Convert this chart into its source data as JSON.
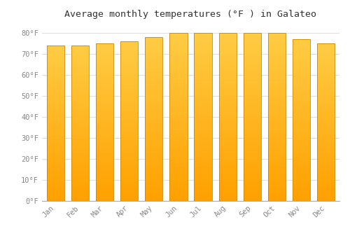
{
  "title": "Average monthly temperatures (°F ) in Galateo",
  "months": [
    "Jan",
    "Feb",
    "Mar",
    "Apr",
    "May",
    "Jun",
    "Jul",
    "Aug",
    "Sep",
    "Oct",
    "Nov",
    "Dec"
  ],
  "values": [
    74,
    74,
    75,
    76,
    78,
    80,
    80,
    80,
    80,
    80,
    77,
    75
  ],
  "bar_color_top": "#FFCC44",
  "bar_color_bottom": "#FFA000",
  "ylim": [
    0,
    84
  ],
  "yticks": [
    0,
    10,
    20,
    30,
    40,
    50,
    60,
    70,
    80
  ],
  "ytick_labels": [
    "0°F",
    "10°F",
    "20°F",
    "30°F",
    "40°F",
    "50°F",
    "60°F",
    "70°F",
    "80°F"
  ],
  "bg_color": "#FFFFFF",
  "grid_color": "#DDDDDD",
  "title_fontsize": 9.5,
  "tick_fontsize": 7.5,
  "bar_edge_color": "#CC8800",
  "font_family": "monospace"
}
